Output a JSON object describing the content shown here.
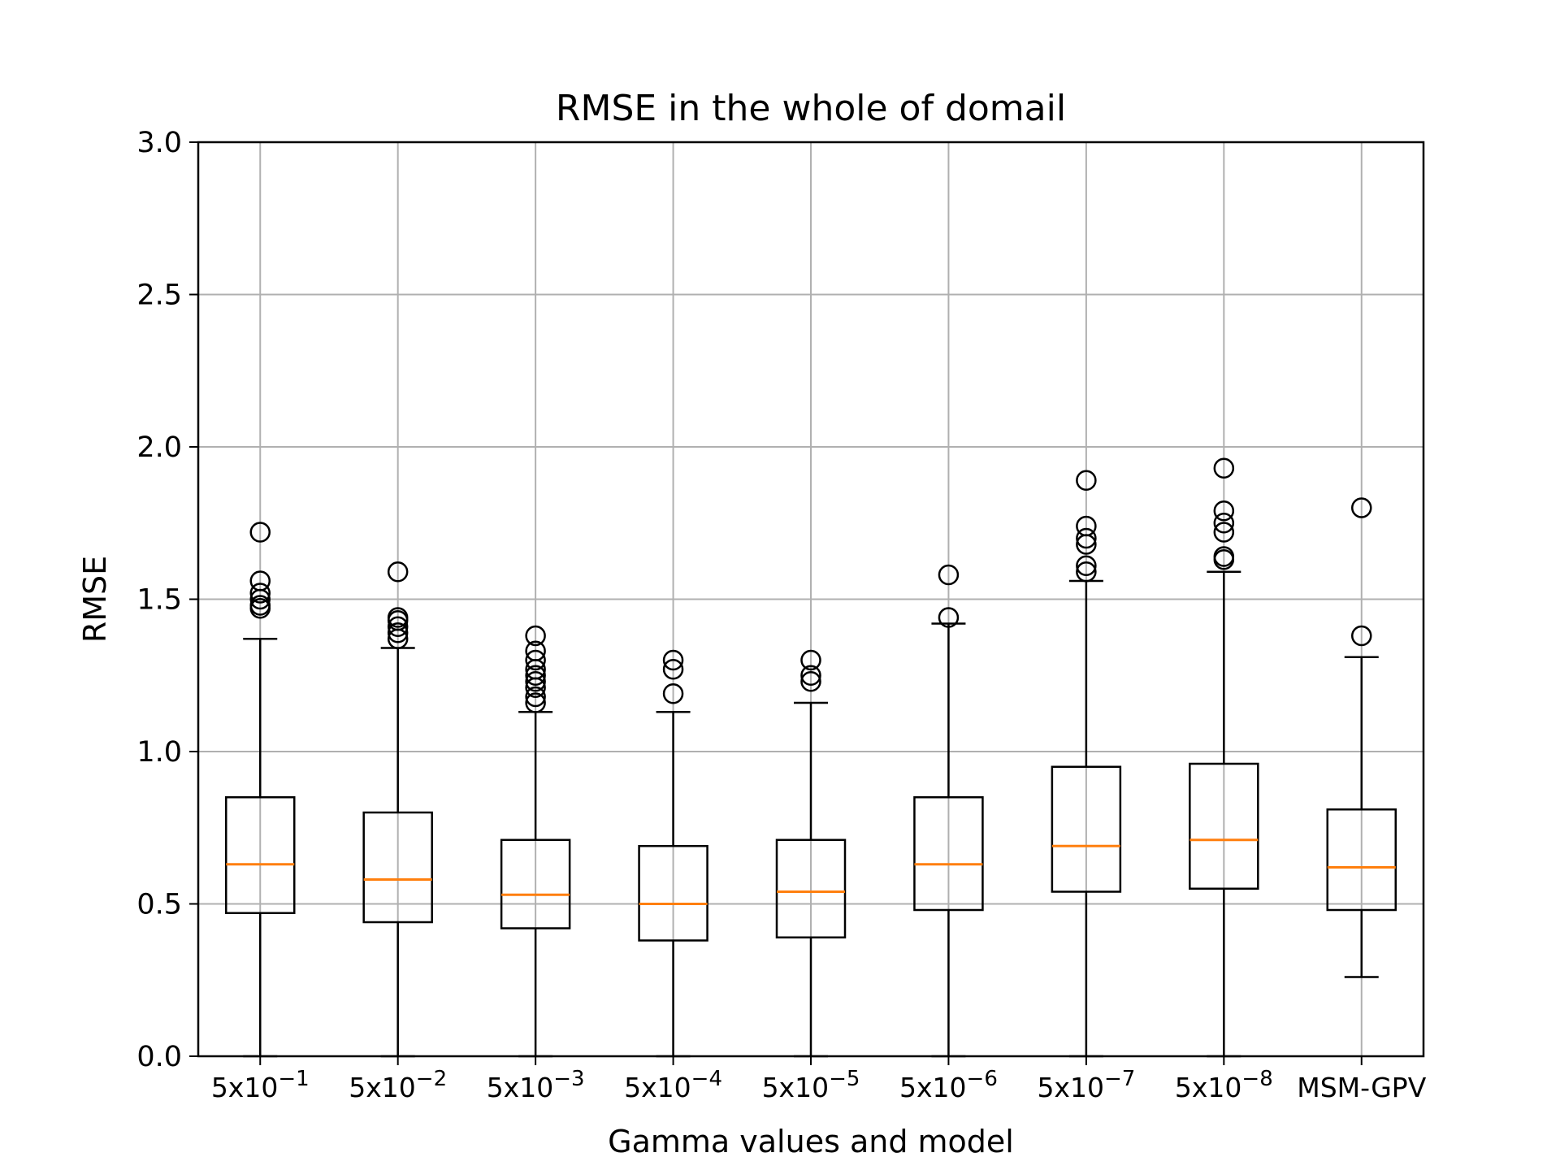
{
  "chart_data": {
    "type": "boxplot",
    "title": "RMSE in the whole of domail",
    "xlabel": "Gamma values and model",
    "ylabel": "RMSE",
    "ylim": [
      0,
      3.0
    ],
    "yticks": [
      "0.0",
      "0.5",
      "1.0",
      "1.5",
      "2.0",
      "2.5",
      "3.0"
    ],
    "grid": true,
    "categories": [
      {
        "base": "5x10",
        "exp": "−1"
      },
      {
        "base": "5x10",
        "exp": "−2"
      },
      {
        "base": "5x10",
        "exp": "−3"
      },
      {
        "base": "5x10",
        "exp": "−4"
      },
      {
        "base": "5x10",
        "exp": "−5"
      },
      {
        "base": "5x10",
        "exp": "−6"
      },
      {
        "base": "5x10",
        "exp": "−7"
      },
      {
        "base": "5x10",
        "exp": "−8"
      },
      {
        "base": "MSM-GPV",
        "exp": ""
      }
    ],
    "boxes": [
      {
        "whisker_low": 0.0,
        "q1": 0.47,
        "median": 0.63,
        "q3": 0.85,
        "whisker_high": 1.37,
        "outliers": [
          1.47,
          1.48,
          1.5,
          1.52,
          1.56,
          1.72
        ]
      },
      {
        "whisker_low": 0.0,
        "q1": 0.44,
        "median": 0.58,
        "q3": 0.8,
        "whisker_high": 1.34,
        "outliers": [
          1.37,
          1.39,
          1.41,
          1.43,
          1.44,
          1.59
        ]
      },
      {
        "whisker_low": 0.0,
        "q1": 0.42,
        "median": 0.53,
        "q3": 0.71,
        "whisker_high": 1.13,
        "outliers": [
          1.16,
          1.18,
          1.21,
          1.23,
          1.25,
          1.27,
          1.3,
          1.33,
          1.38
        ]
      },
      {
        "whisker_low": 0.0,
        "q1": 0.38,
        "median": 0.5,
        "q3": 0.69,
        "whisker_high": 1.13,
        "outliers": [
          1.19,
          1.27,
          1.3
        ]
      },
      {
        "whisker_low": 0.0,
        "q1": 0.39,
        "median": 0.54,
        "q3": 0.71,
        "whisker_high": 1.16,
        "outliers": [
          1.23,
          1.25,
          1.3
        ]
      },
      {
        "whisker_low": 0.0,
        "q1": 0.48,
        "median": 0.63,
        "q3": 0.85,
        "whisker_high": 1.42,
        "outliers": [
          1.44,
          1.58
        ]
      },
      {
        "whisker_low": 0.0,
        "q1": 0.54,
        "median": 0.69,
        "q3": 0.95,
        "whisker_high": 1.56,
        "outliers": [
          1.59,
          1.61,
          1.68,
          1.7,
          1.74,
          1.89
        ]
      },
      {
        "whisker_low": 0.0,
        "q1": 0.55,
        "median": 0.71,
        "q3": 0.96,
        "whisker_high": 1.59,
        "outliers": [
          1.63,
          1.64,
          1.72,
          1.75,
          1.79,
          1.93
        ]
      },
      {
        "whisker_low": 0.26,
        "q1": 0.48,
        "median": 0.62,
        "q3": 0.81,
        "whisker_high": 1.31,
        "outliers": [
          1.38,
          1.8
        ]
      }
    ],
    "colors": {
      "box": "#000000",
      "median": "#ff7f0e",
      "grid": "#b0b0b0"
    }
  }
}
